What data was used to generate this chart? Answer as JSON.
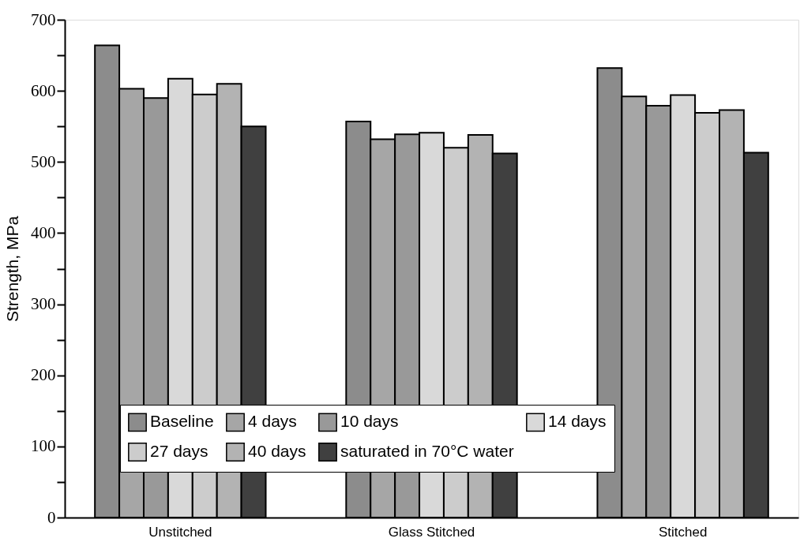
{
  "chart_data": {
    "type": "bar",
    "ylabel": "Strength, MPa",
    "categories": [
      "Unstitched",
      "Glass Stitched",
      "Stitched"
    ],
    "series": [
      {
        "name": "Baseline",
        "color": "#8c8c8c",
        "values": [
          664,
          557,
          632
        ]
      },
      {
        "name": "4 days",
        "color": "#a6a6a6",
        "values": [
          603,
          532,
          592
        ]
      },
      {
        "name": "10 days",
        "color": "#999999",
        "values": [
          590,
          539,
          579
        ]
      },
      {
        "name": "14 days",
        "color": "#d9d9d9",
        "values": [
          617,
          541,
          594
        ]
      },
      {
        "name": "27 days",
        "color": "#cccccc",
        "values": [
          595,
          520,
          569
        ]
      },
      {
        "name": "40 days",
        "color": "#b3b3b3",
        "values": [
          610,
          538,
          573
        ]
      },
      {
        "name": "saturated in 70°C water",
        "color": "#404040",
        "values": [
          550,
          512,
          513
        ]
      }
    ],
    "ylim": [
      0,
      700
    ],
    "yticks": [
      0,
      {
        "value": 50,
        "label": null
      },
      100,
      {
        "value": 150,
        "label": null
      },
      200,
      {
        "value": 250,
        "label": null
      },
      300,
      {
        "value": 350,
        "label": null
      },
      400,
      {
        "value": 450,
        "label": null
      },
      500,
      {
        "value": 550,
        "label": null
      },
      600,
      {
        "value": 650,
        "label": null
      },
      700
    ],
    "grid": false,
    "legend": "bottom"
  }
}
